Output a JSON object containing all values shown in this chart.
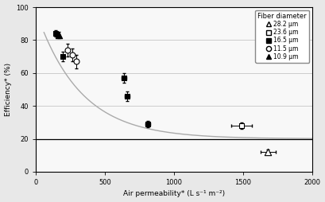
{
  "title": "",
  "xlabel": "Air permeability* (L s⁻¹ m⁻²)",
  "ylabel": "Efficiency* (%)",
  "xlim": [
    0,
    2000
  ],
  "ylim": [
    0,
    100
  ],
  "xticks": [
    0,
    500,
    1000,
    1500,
    2000
  ],
  "yticks": [
    0,
    20,
    40,
    60,
    80,
    100
  ],
  "hlines": [
    20
  ],
  "legend_title": "Fiber diameter",
  "legend_entries": [
    "28.2 μm",
    "23.6 μm",
    "16.5 μm",
    "11.5 μm",
    "10.9 μm"
  ],
  "data_28_2": {
    "x": [
      1680
    ],
    "y": [
      12
    ],
    "xerr": [
      55
    ],
    "yerr": [
      1.5
    ],
    "marker": "^",
    "facecolor": "white",
    "edgecolor": "black"
  },
  "data_23_6": {
    "x": [
      1490
    ],
    "y": [
      28
    ],
    "xerr": [
      75
    ],
    "yerr": [
      2
    ],
    "marker": "s",
    "facecolor": "white",
    "edgecolor": "black"
  },
  "data_16_5": {
    "x": [
      145,
      195,
      640,
      660,
      810
    ],
    "y": [
      84,
      70,
      57,
      46,
      29
    ],
    "xerr": [
      8,
      8,
      18,
      18,
      18
    ],
    "yerr": [
      2,
      3,
      3,
      3,
      2
    ],
    "marker": "s",
    "facecolor": "black",
    "edgecolor": "black"
  },
  "data_11_5": {
    "x": [
      230,
      265,
      295
    ],
    "y": [
      74,
      71,
      67
    ],
    "xerr": [
      12,
      12,
      12
    ],
    "yerr": [
      4,
      4,
      4
    ],
    "marker": "o",
    "facecolor": "white",
    "edgecolor": "black"
  },
  "data_10_9": {
    "x": [
      165
    ],
    "y": [
      83
    ],
    "xerr": [
      8
    ],
    "yerr": [
      2
    ],
    "marker": "^",
    "facecolor": "black",
    "edgecolor": "black"
  },
  "curve_color": "#aaaaaa",
  "bg_color": "#e8e8e8",
  "plot_bg": "#f8f8f8"
}
